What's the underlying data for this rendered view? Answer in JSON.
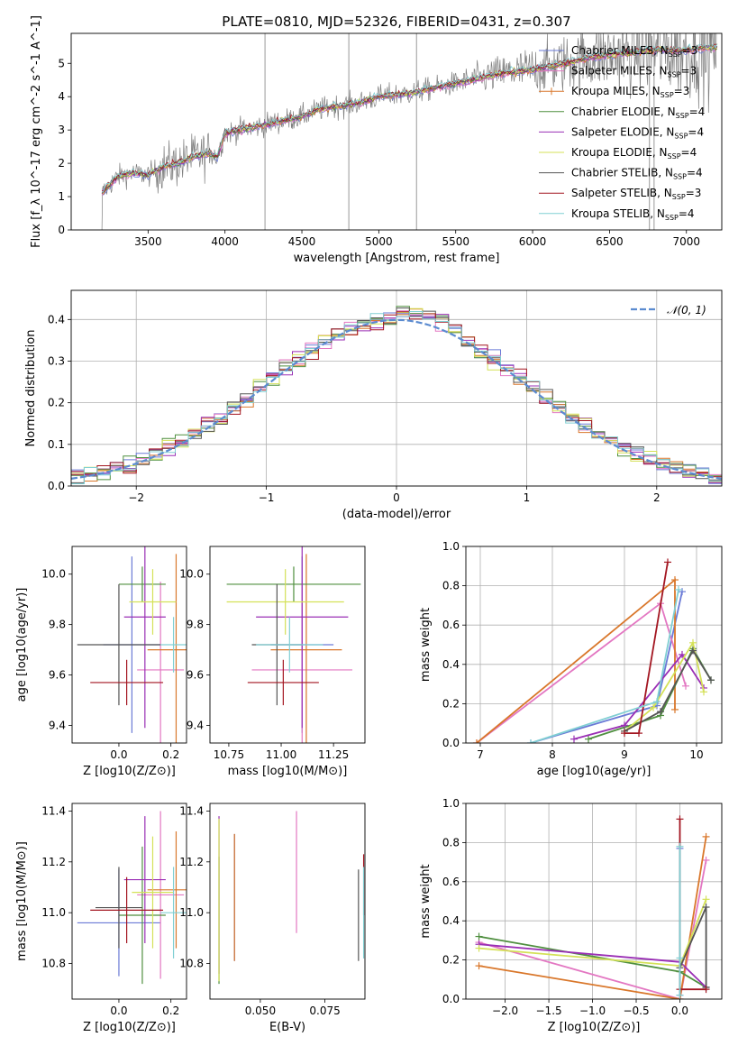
{
  "figure": {
    "title": "PLATE=0810, MJD=52326, FIBERID=0431, z=0.307"
  },
  "models": [
    {
      "name": "Chabrier MILES",
      "nssp": "3",
      "color": "#6a7ad6"
    },
    {
      "name": "Salpeter MILES",
      "nssp": "3",
      "color": "#e377c2"
    },
    {
      "name": "Kroupa MILES",
      "nssp": "3",
      "color": "#d9772b"
    },
    {
      "name": "Chabrier ELODIE",
      "nssp": "4",
      "color": "#4f8f3f"
    },
    {
      "name": "Salpeter ELODIE",
      "nssp": "4",
      "color": "#9a2fb5"
    },
    {
      "name": "Kroupa ELODIE",
      "nssp": "4",
      "color": "#d4e157"
    },
    {
      "name": "Chabrier STELIB",
      "nssp": "4",
      "color": "#555555"
    },
    {
      "name": "Salpeter STELIB",
      "nssp": "3",
      "color": "#a31621"
    },
    {
      "name": "Kroupa STELIB",
      "nssp": "4",
      "color": "#80cfd3"
    }
  ],
  "chart_data": [
    {
      "id": "spectrum",
      "type": "line",
      "xlabel": "wavelength [Angstrom, rest frame]",
      "ylabel": "Flux [f_λ 10^-17 erg cm^-2 s^-1 A^-1]",
      "xlim": [
        3000,
        7230
      ],
      "ylim": [
        0,
        5.9
      ],
      "xticks": [
        3500,
        4000,
        4500,
        5000,
        5500,
        6000,
        6500,
        7000
      ],
      "yticks": [
        0,
        1,
        2,
        3,
        4,
        5
      ],
      "legend": "right",
      "continuum": [
        [
          3200,
          1.1
        ],
        [
          3300,
          1.6
        ],
        [
          3400,
          1.7
        ],
        [
          3500,
          1.65
        ],
        [
          3600,
          1.9
        ],
        [
          3700,
          2.0
        ],
        [
          3800,
          2.2
        ],
        [
          3900,
          2.3
        ],
        [
          3950,
          2.2
        ],
        [
          4000,
          2.9
        ],
        [
          4100,
          3.0
        ],
        [
          4200,
          3.1
        ],
        [
          4300,
          3.2
        ],
        [
          4400,
          3.3
        ],
        [
          4500,
          3.4
        ],
        [
          4600,
          3.6
        ],
        [
          4700,
          3.7
        ],
        [
          4800,
          3.75
        ],
        [
          4900,
          3.85
        ],
        [
          5000,
          4.0
        ],
        [
          5200,
          4.1
        ],
        [
          5400,
          4.3
        ],
        [
          5600,
          4.5
        ],
        [
          5800,
          4.7
        ],
        [
          6000,
          4.8
        ],
        [
          6200,
          5.0
        ],
        [
          6400,
          5.2
        ],
        [
          6600,
          5.3
        ],
        [
          6800,
          5.4
        ],
        [
          7000,
          5.4
        ],
        [
          7200,
          5.5
        ]
      ]
    },
    {
      "id": "residuals",
      "type": "histogram",
      "xlabel": "(data-model)/error",
      "ylabel": "Normed distribution",
      "xlim": [
        -2.5,
        2.5
      ],
      "ylim": [
        0,
        0.47
      ],
      "xticks": [
        -2,
        -1,
        0,
        1,
        2
      ],
      "yticks": [
        0.0,
        0.1,
        0.2,
        0.3,
        0.4
      ],
      "legend": "N(0,1)",
      "legend_label": "𝒩(0, 1)",
      "bin_width": 0.1,
      "bin_start": -2.5,
      "grid": true
    },
    {
      "id": "age_vs_Z",
      "type": "errorbar",
      "xlabel": "Z [log10(Z/Z⊙)]",
      "ylabel": "age [log10(age/yr)]",
      "xlim": [
        -0.18,
        0.26
      ],
      "ylim": [
        9.33,
        10.11
      ],
      "xticks": [
        0.0,
        0.2
      ],
      "yticks": [
        9.4,
        9.6,
        9.8,
        10.0
      ],
      "points": [
        {
          "model": 0,
          "x": 0.05,
          "xerr": 0.11,
          "y": 9.72,
          "yerr": 0.35
        },
        {
          "model": 1,
          "x": 0.16,
          "xerr": 0.09,
          "y": 9.62,
          "yerr": 0.35
        },
        {
          "model": 2,
          "x": 0.22,
          "xerr": 0.11,
          "y": 9.7,
          "yerr": 0.38
        },
        {
          "model": 3,
          "x": 0.09,
          "xerr": 0.09,
          "y": 9.96,
          "yerr": 0.07
        },
        {
          "model": 4,
          "x": 0.1,
          "xerr": 0.08,
          "y": 9.83,
          "yerr": 0.44
        },
        {
          "model": 5,
          "x": 0.13,
          "xerr": 0.09,
          "y": 9.89,
          "yerr": 0.13
        },
        {
          "model": 6,
          "x": 0.0,
          "xerr": 0.16,
          "y": 9.72,
          "yerr": 0.24
        },
        {
          "model": 7,
          "x": 0.03,
          "xerr": 0.14,
          "y": 9.57,
          "yerr": 0.09
        },
        {
          "model": 8,
          "x": 0.21,
          "xerr": 0.05,
          "y": 9.72,
          "yerr": 0.11
        }
      ]
    },
    {
      "id": "age_vs_mass",
      "type": "errorbar",
      "xlabel": "mass [log10(M/M⊙)]",
      "ylabel": "",
      "xlim": [
        10.66,
        11.4
      ],
      "ylim": [
        9.33,
        10.11
      ],
      "xticks": [
        10.75,
        11.0,
        11.25
      ],
      "yticks": [
        9.4,
        9.6,
        9.8,
        10.0
      ],
      "points": [
        {
          "model": 0,
          "x": 11.1,
          "xerr": 0.15,
          "y": 9.72,
          "yerr": 0.35
        },
        {
          "model": 1,
          "x": 11.1,
          "xerr": 0.24,
          "y": 9.62,
          "yerr": 0.35
        },
        {
          "model": 2,
          "x": 11.12,
          "xerr": 0.17,
          "y": 9.7,
          "yerr": 0.38
        },
        {
          "model": 3,
          "x": 11.06,
          "xerr": 0.32,
          "y": 9.96,
          "yerr": 0.07
        },
        {
          "model": 4,
          "x": 11.1,
          "xerr": 0.22,
          "y": 9.83,
          "yerr": 0.44
        },
        {
          "model": 5,
          "x": 11.02,
          "xerr": 0.28,
          "y": 9.89,
          "yerr": 0.13
        },
        {
          "model": 6,
          "x": 10.98,
          "xerr": 0.12,
          "y": 9.72,
          "yerr": 0.24
        },
        {
          "model": 7,
          "x": 11.01,
          "xerr": 0.17,
          "y": 9.57,
          "yerr": 0.09
        },
        {
          "model": 8,
          "x": 11.04,
          "xerr": 0.16,
          "y": 9.72,
          "yerr": 0.11
        }
      ]
    },
    {
      "id": "massweight_vs_age",
      "type": "line",
      "xlabel": "age [log10(age/yr)]",
      "ylabel": "mass weight",
      "xlim": [
        6.8,
        10.35
      ],
      "ylim": [
        0.0,
        1.0
      ],
      "xticks": [
        7,
        8,
        9,
        10
      ],
      "yticks": [
        0.0,
        0.2,
        0.4,
        0.6,
        0.8,
        1.0
      ],
      "grid": true,
      "series": [
        {
          "model": 0,
          "points": [
            [
              7.7,
              0.0
            ],
            [
              9.45,
              0.19
            ],
            [
              9.8,
              0.77
            ]
          ]
        },
        {
          "model": 1,
          "points": [
            [
              6.95,
              0.0
            ],
            [
              9.5,
              0.71
            ],
            [
              9.85,
              0.29
            ]
          ]
        },
        {
          "model": 2,
          "points": [
            [
              6.95,
              0.0
            ],
            [
              9.7,
              0.83
            ],
            [
              9.7,
              0.17
            ]
          ]
        },
        {
          "model": 3,
          "points": [
            [
              8.5,
              0.02
            ],
            [
              9.5,
              0.14
            ],
            [
              9.95,
              0.48
            ],
            [
              10.2,
              0.32
            ]
          ]
        },
        {
          "model": 4,
          "points": [
            [
              8.3,
              0.02
            ],
            [
              9.0,
              0.09
            ],
            [
              9.8,
              0.45
            ],
            [
              10.1,
              0.28
            ]
          ]
        },
        {
          "model": 5,
          "points": [
            [
              9.0,
              0.06
            ],
            [
              9.4,
              0.18
            ],
            [
              9.95,
              0.51
            ],
            [
              10.1,
              0.26
            ]
          ]
        },
        {
          "model": 6,
          "points": [
            [
              9.0,
              0.06
            ],
            [
              9.5,
              0.16
            ],
            [
              9.95,
              0.47
            ],
            [
              10.2,
              0.32
            ]
          ]
        },
        {
          "model": 7,
          "points": [
            [
              9.0,
              0.05
            ],
            [
              9.2,
              0.05
            ],
            [
              9.6,
              0.92
            ]
          ]
        },
        {
          "model": 8,
          "points": [
            [
              7.7,
              0.0
            ],
            [
              9.45,
              0.21
            ],
            [
              9.75,
              0.78
            ]
          ]
        }
      ]
    },
    {
      "id": "mass_vs_Z",
      "type": "errorbar",
      "xlabel": "Z [log10(Z/Z⊙)]",
      "ylabel": "mass [log10(M/M⊙)]",
      "xlim": [
        -0.18,
        0.26
      ],
      "ylim": [
        10.66,
        11.43
      ],
      "xticks": [
        0.0,
        0.2
      ],
      "yticks": [
        10.8,
        11.0,
        11.2,
        11.4
      ],
      "points": [
        {
          "model": 0,
          "x": 0.0,
          "xerr": 0.16,
          "y": 10.96,
          "yerr": 0.21
        },
        {
          "model": 1,
          "x": 0.16,
          "xerr": 0.09,
          "y": 11.07,
          "yerr": 0.33
        },
        {
          "model": 2,
          "x": 0.22,
          "xerr": 0.11,
          "y": 11.09,
          "yerr": 0.23
        },
        {
          "model": 3,
          "x": 0.09,
          "xerr": 0.09,
          "y": 10.99,
          "yerr": 0.27
        },
        {
          "model": 4,
          "x": 0.1,
          "xerr": 0.08,
          "y": 11.13,
          "yerr": 0.25
        },
        {
          "model": 5,
          "x": 0.13,
          "xerr": 0.08,
          "y": 11.08,
          "yerr": 0.22
        },
        {
          "model": 6,
          "x": 0.0,
          "xerr": 0.09,
          "y": 11.02,
          "yerr": 0.16
        },
        {
          "model": 7,
          "x": 0.03,
          "xerr": 0.14,
          "y": 11.01,
          "yerr": 0.13
        },
        {
          "model": 8,
          "x": 0.21,
          "xerr": 0.05,
          "y": 11.0,
          "yerr": 0.18
        }
      ]
    },
    {
      "id": "mass_vs_EBV",
      "type": "errorbar",
      "xlabel": "E(B-V)",
      "ylabel": "",
      "xlim": [
        0.0305,
        0.0905
      ],
      "ylim": [
        10.66,
        11.43
      ],
      "xticks": [
        0.05,
        0.075
      ],
      "xticklabels": [
        "0.050",
        "0.075"
      ],
      "yticks": [
        10.8,
        11.0,
        11.2,
        11.4
      ],
      "points": [
        {
          "model": 0,
          "x": 0.04,
          "y": 11.06,
          "yerr": 0.25
        },
        {
          "model": 1,
          "x": 0.064,
          "y": 11.16,
          "yerr": 0.24
        },
        {
          "model": 2,
          "x": 0.04,
          "y": 11.06,
          "yerr": 0.25
        },
        {
          "model": 3,
          "x": 0.034,
          "y": 10.97,
          "yerr": 0.25
        },
        {
          "model": 4,
          "x": 0.034,
          "y": 11.07,
          "yerr": 0.31
        },
        {
          "model": 5,
          "x": 0.034,
          "y": 11.05,
          "yerr": 0.32
        },
        {
          "model": 6,
          "x": 0.088,
          "y": 10.99,
          "yerr": 0.18
        },
        {
          "model": 7,
          "x": 0.09,
          "y": 11.11,
          "yerr": 0.12
        },
        {
          "model": 8,
          "x": 0.09,
          "y": 11.0,
          "yerr": 0.18
        }
      ]
    },
    {
      "id": "massweight_vs_Z",
      "type": "line",
      "xlabel": "Z [log10(Z/Z⊙)]",
      "ylabel": "mass weight",
      "xlim": [
        -2.45,
        0.48
      ],
      "ylim": [
        0.0,
        1.0
      ],
      "xticks": [
        -2.0,
        -1.5,
        -1.0,
        -0.5,
        0.0
      ],
      "xticklabels": [
        "−2.0",
        "−1.5",
        "−1.0",
        "−0.5",
        "0.0"
      ],
      "yticks": [
        0.0,
        0.2,
        0.4,
        0.6,
        0.8,
        1.0
      ],
      "grid": true,
      "series": [
        {
          "model": 0,
          "points": [
            [
              0.0,
              0.02
            ],
            [
              0.0,
              0.19
            ],
            [
              0.0,
              0.77
            ]
          ]
        },
        {
          "model": 1,
          "points": [
            [
              -2.3,
              0.29
            ],
            [
              0.0,
              0.0
            ],
            [
              0.3,
              0.71
            ]
          ]
        },
        {
          "model": 2,
          "points": [
            [
              -2.3,
              0.17
            ],
            [
              0.0,
              0.0
            ],
            [
              0.3,
              0.83
            ]
          ]
        },
        {
          "model": 3,
          "points": [
            [
              -2.3,
              0.32
            ],
            [
              0.0,
              0.14
            ],
            [
              0.3,
              0.06
            ]
          ]
        },
        {
          "model": 4,
          "points": [
            [
              -2.3,
              0.28
            ],
            [
              0.0,
              0.19
            ],
            [
              0.3,
              0.06
            ]
          ]
        },
        {
          "model": 5,
          "points": [
            [
              -2.3,
              0.26
            ],
            [
              0.0,
              0.17
            ],
            [
              0.3,
              0.51
            ]
          ]
        },
        {
          "model": 6,
          "points": [
            [
              0.0,
              0.16
            ],
            [
              0.3,
              0.47
            ],
            [
              0.3,
              0.06
            ]
          ]
        },
        {
          "model": 7,
          "points": [
            [
              0.0,
              0.92
            ],
            [
              0.0,
              0.05
            ],
            [
              0.3,
              0.05
            ]
          ]
        },
        {
          "model": 8,
          "points": [
            [
              0.0,
              0.02
            ],
            [
              0.0,
              0.21
            ],
            [
              0.0,
              0.78
            ]
          ]
        }
      ]
    }
  ]
}
